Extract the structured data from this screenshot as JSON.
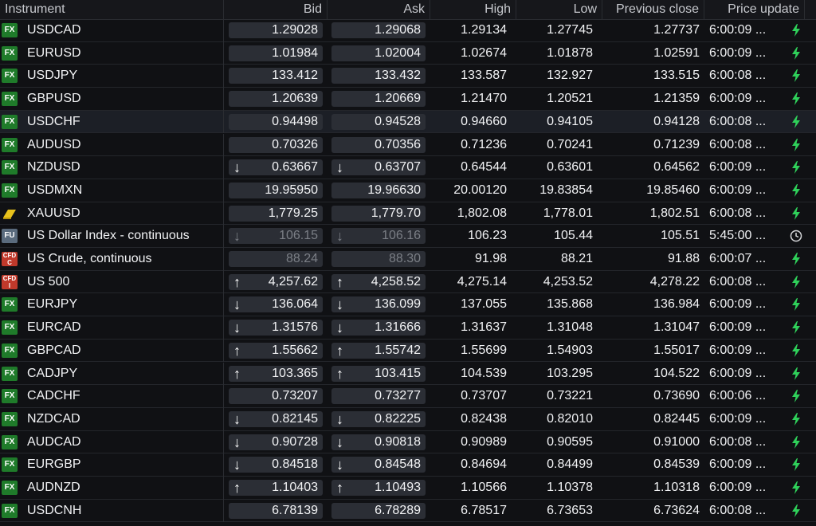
{
  "columns": {
    "instrument": "Instrument",
    "bid": "Bid",
    "ask": "Ask",
    "high": "High",
    "low": "Low",
    "previous_close": "Previous close",
    "price_update": "Price update"
  },
  "rows": [
    {
      "badge": "FX",
      "name": "USDCAD",
      "bid": "1.29028",
      "ask": "1.29068",
      "high": "1.29134",
      "low": "1.27745",
      "prev": "1.27737",
      "update": "6:00:09 ...",
      "arrow": "",
      "status": "bolt-icon",
      "dim": false
    },
    {
      "badge": "FX",
      "name": "EURUSD",
      "bid": "1.01984",
      "ask": "1.02004",
      "high": "1.02674",
      "low": "1.01878",
      "prev": "1.02591",
      "update": "6:00:09 ...",
      "arrow": "",
      "status": "bolt-icon",
      "dim": false
    },
    {
      "badge": "FX",
      "name": "USDJPY",
      "bid": "133.412",
      "ask": "133.432",
      "high": "133.587",
      "low": "132.927",
      "prev": "133.515",
      "update": "6:00:08 ...",
      "arrow": "",
      "status": "bolt-icon",
      "dim": false
    },
    {
      "badge": "FX",
      "name": "GBPUSD",
      "bid": "1.20639",
      "ask": "1.20669",
      "high": "1.21470",
      "low": "1.20521",
      "prev": "1.21359",
      "update": "6:00:09 ...",
      "arrow": "",
      "status": "bolt-icon",
      "dim": false
    },
    {
      "badge": "FX",
      "name": "USDCHF",
      "bid": "0.94498",
      "ask": "0.94528",
      "high": "0.94660",
      "low": "0.94105",
      "prev": "0.94128",
      "update": "6:00:08 ...",
      "arrow": "",
      "status": "bolt-icon",
      "dim": false,
      "selected": true
    },
    {
      "badge": "FX",
      "name": "AUDUSD",
      "bid": "0.70326",
      "ask": "0.70356",
      "high": "0.71236",
      "low": "0.70241",
      "prev": "0.71239",
      "update": "6:00:08 ...",
      "arrow": "",
      "status": "bolt-icon",
      "dim": false
    },
    {
      "badge": "FX",
      "name": "NZDUSD",
      "bid": "0.63667",
      "ask": "0.63707",
      "high": "0.64544",
      "low": "0.63601",
      "prev": "0.64562",
      "update": "6:00:09 ...",
      "arrow": "down",
      "status": "bolt-icon",
      "dim": false
    },
    {
      "badge": "FX",
      "name": "USDMXN",
      "bid": "19.95950",
      "ask": "19.96630",
      "high": "20.00120",
      "low": "19.83854",
      "prev": "19.85460",
      "update": "6:00:09 ...",
      "arrow": "",
      "status": "bolt-icon",
      "dim": false
    },
    {
      "badge": "GOLD",
      "name": "XAUUSD",
      "bid": "1,779.25",
      "ask": "1,779.70",
      "high": "1,802.08",
      "low": "1,778.01",
      "prev": "1,802.51",
      "update": "6:00:08 ...",
      "arrow": "",
      "status": "bolt-icon",
      "dim": false
    },
    {
      "badge": "FU",
      "name": "US Dollar Index - continuous",
      "bid": "106.15",
      "ask": "106.16",
      "high": "106.23",
      "low": "105.44",
      "prev": "105.51",
      "update": "5:45:00 ...",
      "arrow": "down",
      "status": "clock-icon",
      "dim": true
    },
    {
      "badge": "CFD C",
      "name": "US Crude, continuous",
      "bid": "88.24",
      "ask": "88.30",
      "high": "91.98",
      "low": "88.21",
      "prev": "91.88",
      "update": "6:00:07 ...",
      "arrow": "",
      "status": "bolt-icon",
      "dim": true
    },
    {
      "badge": "CFD I",
      "name": "US 500",
      "bid": "4,257.62",
      "ask": "4,258.52",
      "high": "4,275.14",
      "low": "4,253.52",
      "prev": "4,278.22",
      "update": "6:00:08 ...",
      "arrow": "up",
      "status": "bolt-icon",
      "dim": false
    },
    {
      "badge": "FX",
      "name": "EURJPY",
      "bid": "136.064",
      "ask": "136.099",
      "high": "137.055",
      "low": "135.868",
      "prev": "136.984",
      "update": "6:00:09 ...",
      "arrow": "down",
      "status": "bolt-icon",
      "dim": false
    },
    {
      "badge": "FX",
      "name": "EURCAD",
      "bid": "1.31576",
      "ask": "1.31666",
      "high": "1.31637",
      "low": "1.31048",
      "prev": "1.31047",
      "update": "6:00:09 ...",
      "arrow": "down",
      "status": "bolt-icon",
      "dim": false
    },
    {
      "badge": "FX",
      "name": "GBPCAD",
      "bid": "1.55662",
      "ask": "1.55742",
      "high": "1.55699",
      "low": "1.54903",
      "prev": "1.55017",
      "update": "6:00:09 ...",
      "arrow": "up",
      "status": "bolt-icon",
      "dim": false
    },
    {
      "badge": "FX",
      "name": "CADJPY",
      "bid": "103.365",
      "ask": "103.415",
      "high": "104.539",
      "low": "103.295",
      "prev": "104.522",
      "update": "6:00:09 ...",
      "arrow": "up",
      "status": "bolt-icon",
      "dim": false
    },
    {
      "badge": "FX",
      "name": "CADCHF",
      "bid": "0.73207",
      "ask": "0.73277",
      "high": "0.73707",
      "low": "0.73221",
      "prev": "0.73690",
      "update": "6:00:06 ...",
      "arrow": "",
      "status": "bolt-icon",
      "dim": false
    },
    {
      "badge": "FX",
      "name": "NZDCAD",
      "bid": "0.82145",
      "ask": "0.82225",
      "high": "0.82438",
      "low": "0.82010",
      "prev": "0.82445",
      "update": "6:00:09 ...",
      "arrow": "down",
      "status": "bolt-icon",
      "dim": false
    },
    {
      "badge": "FX",
      "name": "AUDCAD",
      "bid": "0.90728",
      "ask": "0.90818",
      "high": "0.90989",
      "low": "0.90595",
      "prev": "0.91000",
      "update": "6:00:08 ...",
      "arrow": "down",
      "status": "bolt-icon",
      "dim": false
    },
    {
      "badge": "FX",
      "name": "EURGBP",
      "bid": "0.84518",
      "ask": "0.84548",
      "high": "0.84694",
      "low": "0.84499",
      "prev": "0.84539",
      "update": "6:00:09 ...",
      "arrow": "down",
      "status": "bolt-icon",
      "dim": false
    },
    {
      "badge": "FX",
      "name": "AUDNZD",
      "bid": "1.10403",
      "ask": "1.10493",
      "high": "1.10566",
      "low": "1.10378",
      "prev": "1.10318",
      "update": "6:00:09 ...",
      "arrow": "up",
      "status": "bolt-icon",
      "dim": false
    },
    {
      "badge": "FX",
      "name": "USDCNH",
      "bid": "6.78139",
      "ask": "6.78289",
      "high": "6.78517",
      "low": "6.73653",
      "prev": "6.73624",
      "update": "6:00:08 ...",
      "arrow": "",
      "status": "bolt-icon",
      "dim": false
    }
  ]
}
